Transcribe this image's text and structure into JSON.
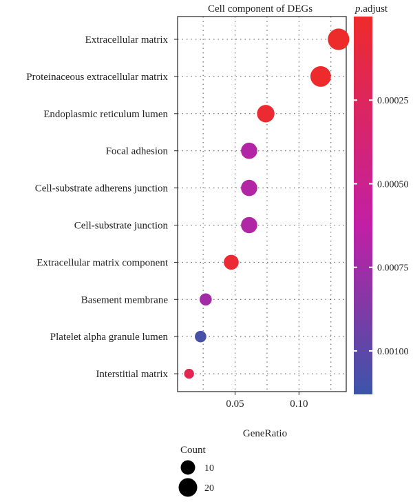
{
  "chart_data": {
    "type": "scatter",
    "title": "Cell component of DEGs",
    "xlabel": "GeneRatio",
    "ylabel": "",
    "xlim": [
      0.005,
      0.137
    ],
    "x_ticks": [
      0.05,
      0.1
    ],
    "x_tick_labels": [
      "0.05",
      "0.10"
    ],
    "grid": true,
    "categories": [
      "Extracellular matrix",
      "Proteinaceous extracellular matrix",
      "Endoplasmic reticulum lumen",
      "Focal adhesion",
      "Cell-substrate adherens junction",
      "Cell-substrate junction",
      "Extracellular matrix component",
      "Basement membrane",
      "Platelet alpha granule lumen",
      "Interstitial matrix"
    ],
    "series": [
      {
        "points": [
          {
            "term": "Extracellular matrix",
            "gene_ratio": 0.131,
            "count": 29,
            "p_adjust": 0.0
          },
          {
            "term": "Proteinaceous extracellular matrix",
            "gene_ratio": 0.117,
            "count": 26,
            "p_adjust": 1e-05
          },
          {
            "term": "Endoplasmic reticulum lumen",
            "gene_ratio": 0.074,
            "count": 17,
            "p_adjust": 3e-05
          },
          {
            "term": "Focal adhesion",
            "gene_ratio": 0.061,
            "count": 14,
            "p_adjust": 0.00068
          },
          {
            "term": "Cell-substrate adherens junction",
            "gene_ratio": 0.061,
            "count": 14,
            "p_adjust": 0.00068
          },
          {
            "term": "Cell-substrate junction",
            "gene_ratio": 0.061,
            "count": 14,
            "p_adjust": 0.00069
          },
          {
            "term": "Extracellular matrix component",
            "gene_ratio": 0.047,
            "count": 11,
            "p_adjust": 4e-05
          },
          {
            "term": "Basement membrane",
            "gene_ratio": 0.027,
            "count": 6,
            "p_adjust": 0.00075
          },
          {
            "term": "Platelet alpha granule lumen",
            "gene_ratio": 0.023,
            "count": 5,
            "p_adjust": 0.00108
          },
          {
            "term": "Interstitial matrix",
            "gene_ratio": 0.014,
            "count": 3,
            "p_adjust": 0.0002
          }
        ]
      }
    ],
    "color_legend": {
      "title_italic": "p",
      "title_rest": ".adjust",
      "range": [
        0.0,
        0.00113
      ],
      "ticks": [
        0.00025,
        0.0005,
        0.00075,
        0.001
      ],
      "tick_labels": [
        "0.00025",
        "0.00050",
        "0.00075",
        "0.00100"
      ],
      "color_low_p": "#ee2b2b",
      "color_mid_p": "#c21fa5",
      "color_high_p": "#3b55a8"
    },
    "size_legend": {
      "title": "Count",
      "values": [
        10,
        20
      ],
      "labels": [
        "10",
        "20"
      ]
    },
    "point_color_default": "#333333",
    "grid_color": "#555555"
  }
}
